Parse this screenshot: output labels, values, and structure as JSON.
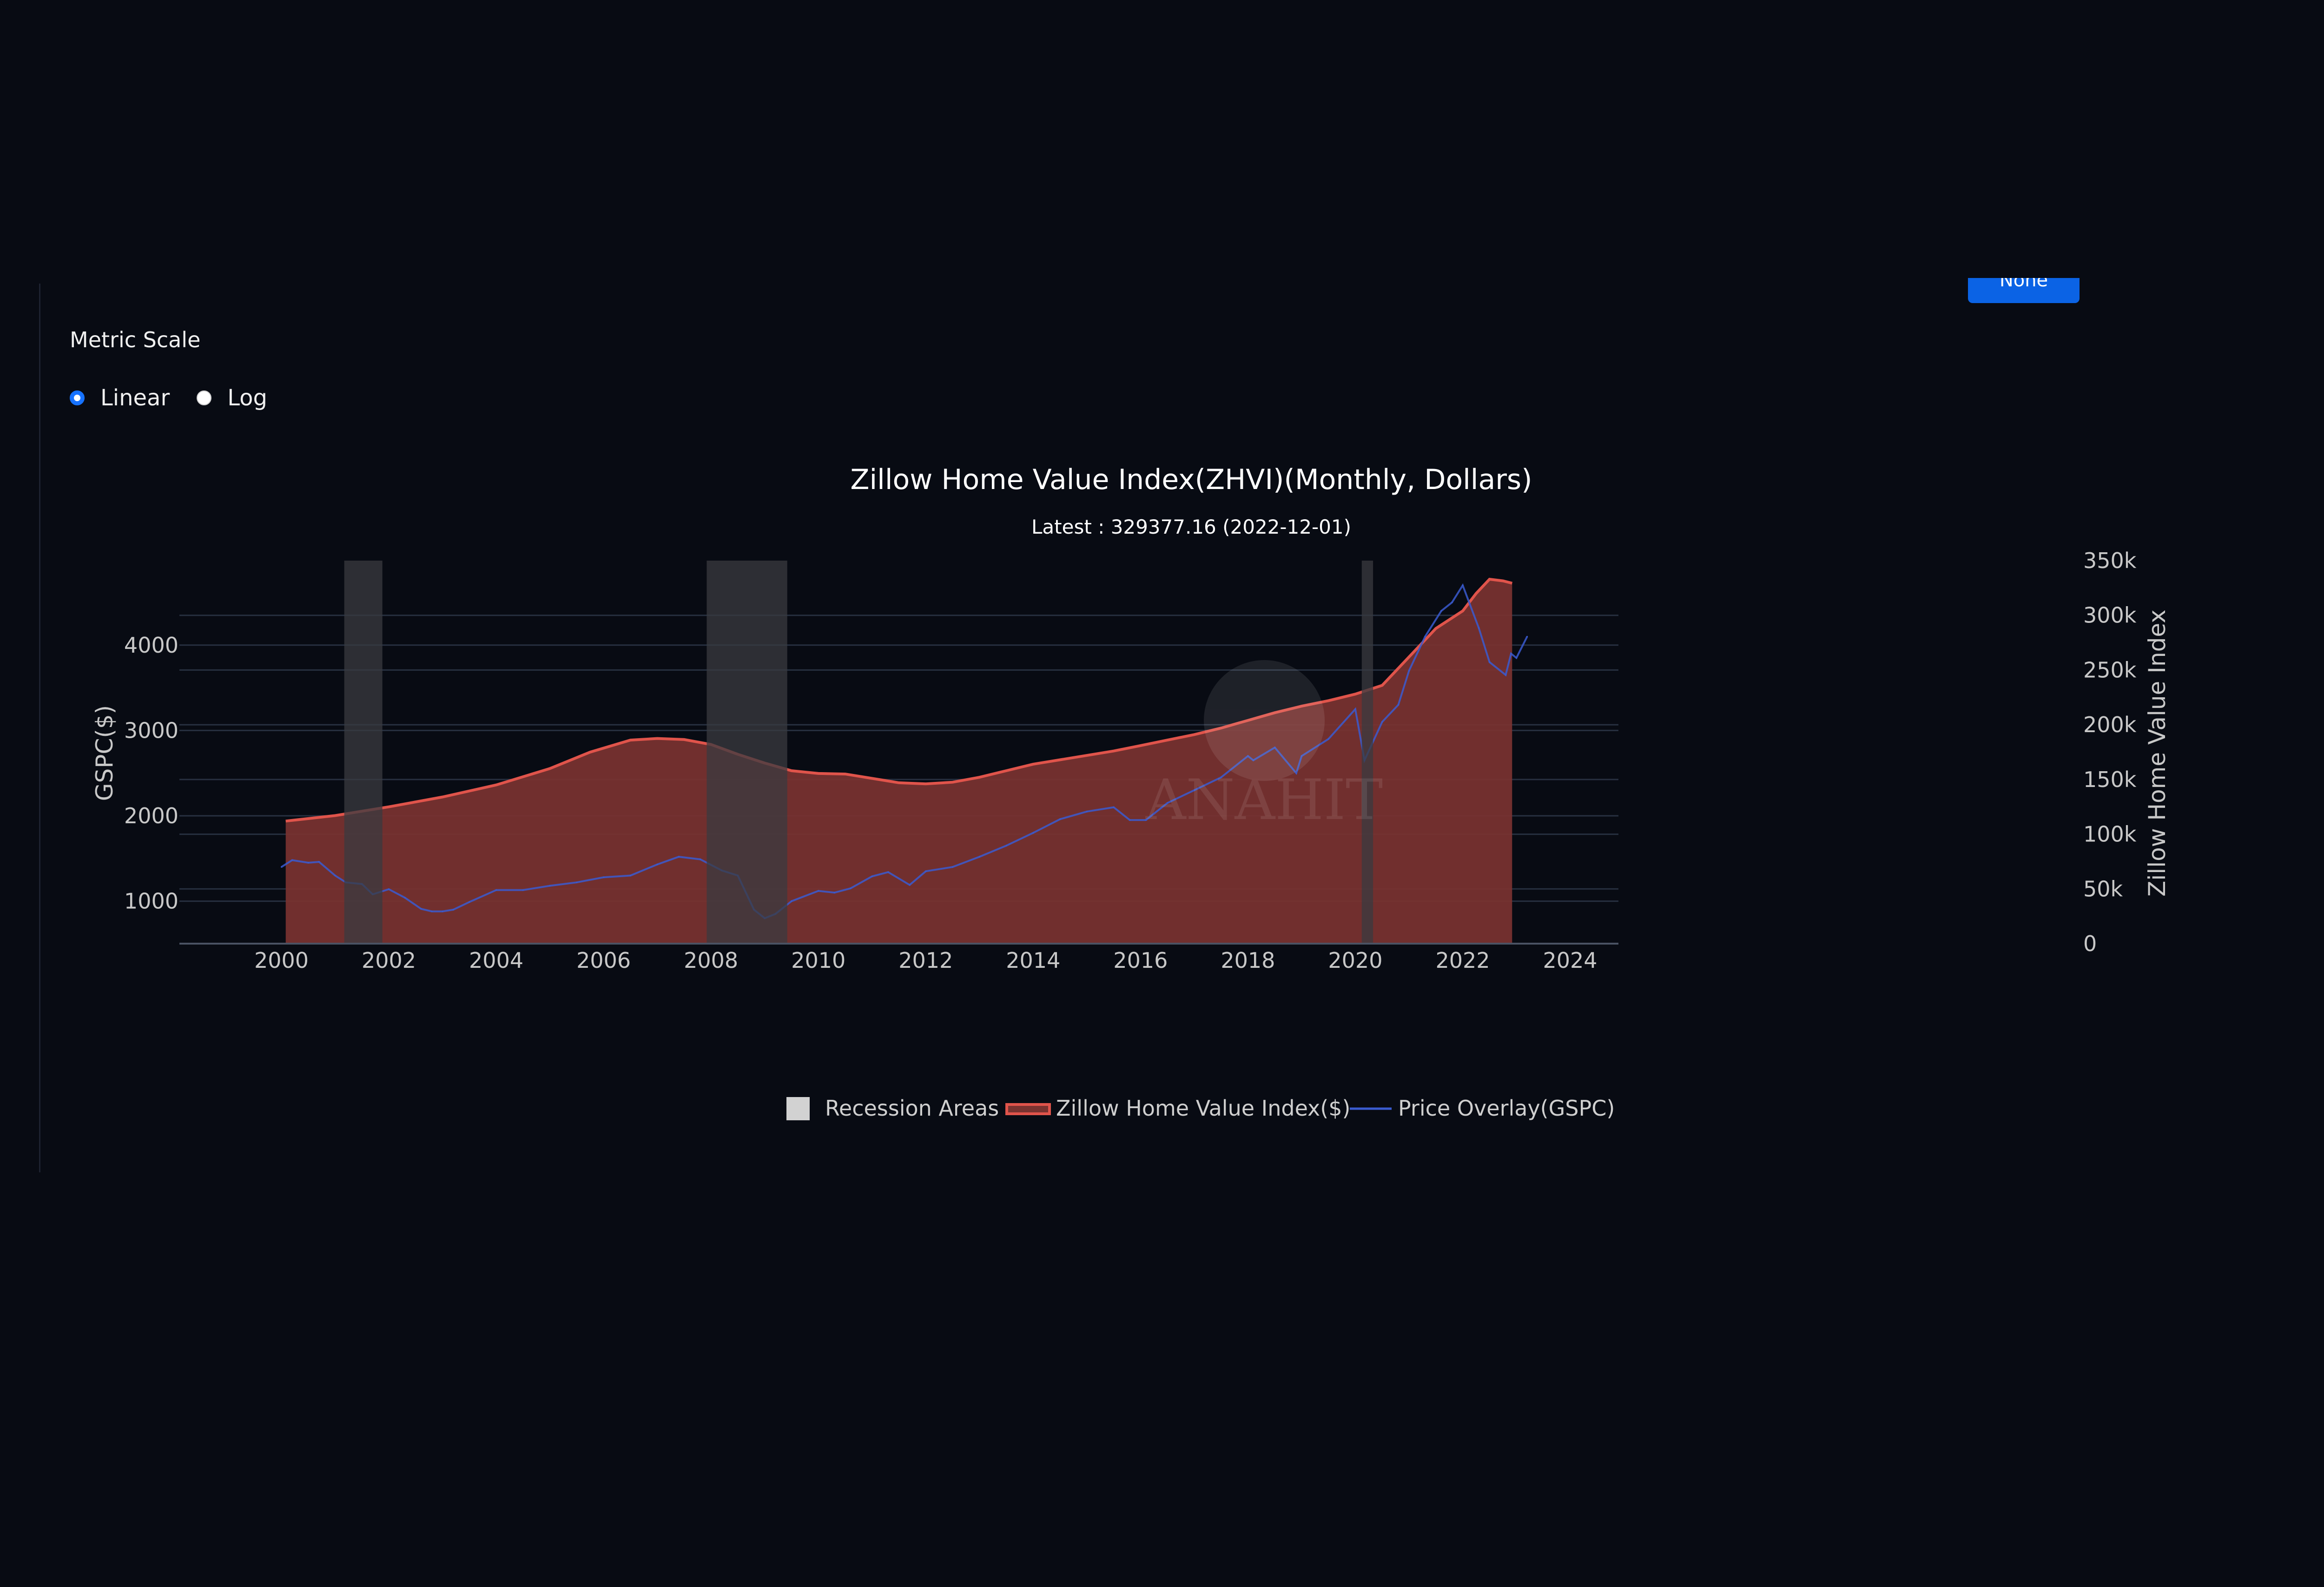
{
  "button": {
    "label": "None"
  },
  "controls": {
    "title": "Metric Scale",
    "options": [
      {
        "label": "Linear",
        "selected": true
      },
      {
        "label": "Log",
        "selected": false
      }
    ]
  },
  "colors": {
    "background": "#080b13",
    "zhvi_line": "#e0544b",
    "zhvi_fill": "#7a3330",
    "gspc_line": "#3a5bd0",
    "recession": "#3a3b40",
    "accent": "#0b63e5"
  },
  "chart_data": {
    "type": "area",
    "title": "Zillow Home Value Index(ZHVI)(Monthly, Dollars)",
    "subtitle": "Latest : 329377.16 (2022-12-01)",
    "watermark": "ANAHIT",
    "x_axis": {
      "range": [
        1998.1,
        2024.9
      ],
      "ticks": [
        "2000",
        "2002",
        "2004",
        "2006",
        "2008",
        "2010",
        "2012",
        "2014",
        "2016",
        "2018",
        "2020",
        "2022",
        "2024"
      ]
    },
    "y_left": {
      "title": "GSPC($)",
      "range": [
        502,
        4990
      ],
      "ticks": [
        "1000",
        "2000",
        "3000",
        "4000"
      ]
    },
    "y_right": {
      "title": "Zillow Home Value Index",
      "range": [
        0,
        350000
      ],
      "ticks": [
        "0",
        "50k",
        "100k",
        "150k",
        "200k",
        "250k",
        "300k",
        "350k"
      ]
    },
    "grid": true,
    "recessions": [
      [
        2001.17,
        2001.88
      ],
      [
        2007.92,
        2009.42
      ],
      [
        2020.12,
        2020.33
      ]
    ],
    "series": [
      {
        "name": "Zillow Home Value Index($)",
        "axis": "right",
        "x": [
          2000.08,
          2001.0,
          2002.0,
          2003.0,
          2004.0,
          2005.0,
          2005.75,
          2006.5,
          2007.0,
          2007.5,
          2008.0,
          2008.5,
          2009.0,
          2009.5,
          2010.0,
          2010.5,
          2011.0,
          2011.5,
          2012.0,
          2012.5,
          2013.0,
          2013.5,
          2014.0,
          2014.5,
          2015.0,
          2015.5,
          2016.0,
          2016.5,
          2017.0,
          2017.5,
          2018.0,
          2018.5,
          2019.0,
          2019.5,
          2020.0,
          2020.5,
          2021.0,
          2021.5,
          2022.0,
          2022.25,
          2022.5,
          2022.75,
          2022.92
        ],
        "y": [
          112000,
          117000,
          125000,
          134000,
          145000,
          160000,
          175000,
          186000,
          187500,
          186500,
          182000,
          173000,
          165000,
          158000,
          155500,
          155000,
          151000,
          147000,
          146000,
          147500,
          152000,
          158000,
          164000,
          168000,
          172000,
          176000,
          181000,
          186000,
          191000,
          197000,
          204000,
          211000,
          217000,
          222000,
          228000,
          236000,
          262000,
          288000,
          304000,
          320000,
          333000,
          331500,
          329377
        ]
      },
      {
        "name": "Price Overlay(GSPC)",
        "axis": "left",
        "x": [
          2000.0,
          2000.2,
          2000.5,
          2000.7,
          2001.0,
          2001.2,
          2001.5,
          2001.7,
          2002.0,
          2002.3,
          2002.6,
          2002.8,
          2003.0,
          2003.2,
          2003.5,
          2004.0,
          2004.5,
          2005.0,
          2005.5,
          2006.0,
          2006.5,
          2007.0,
          2007.4,
          2007.8,
          2008.2,
          2008.5,
          2008.8,
          2009.0,
          2009.2,
          2009.5,
          2010.0,
          2010.3,
          2010.6,
          2011.0,
          2011.3,
          2011.7,
          2012.0,
          2012.5,
          2013.0,
          2013.5,
          2014.0,
          2014.5,
          2015.0,
          2015.5,
          2015.8,
          2016.1,
          2016.5,
          2017.0,
          2017.5,
          2018.0,
          2018.1,
          2018.5,
          2018.9,
          2019.0,
          2019.5,
          2020.0,
          2020.17,
          2020.5,
          2020.8,
          2021.0,
          2021.3,
          2021.6,
          2021.8,
          2022.0,
          2022.3,
          2022.5,
          2022.8,
          2022.9,
          2023.0,
          2023.2
        ],
        "y": [
          1400,
          1480,
          1450,
          1460,
          1300,
          1220,
          1200,
          1080,
          1140,
          1040,
          910,
          880,
          880,
          900,
          990,
          1130,
          1130,
          1180,
          1220,
          1280,
          1300,
          1430,
          1520,
          1490,
          1360,
          1300,
          900,
          800,
          850,
          1000,
          1120,
          1100,
          1150,
          1290,
          1340,
          1190,
          1350,
          1400,
          1520,
          1650,
          1800,
          1960,
          2050,
          2100,
          1950,
          1950,
          2150,
          2300,
          2450,
          2700,
          2650,
          2800,
          2500,
          2700,
          2900,
          3250,
          2650,
          3100,
          3300,
          3700,
          4100,
          4400,
          4500,
          4700,
          4200,
          3800,
          3650,
          3900,
          3850,
          4100
        ]
      }
    ],
    "legend": {
      "placement": "bottom-center",
      "items": [
        "Recession Areas",
        "Zillow Home Value Index($)",
        "Price Overlay(GSPC)"
      ]
    }
  }
}
